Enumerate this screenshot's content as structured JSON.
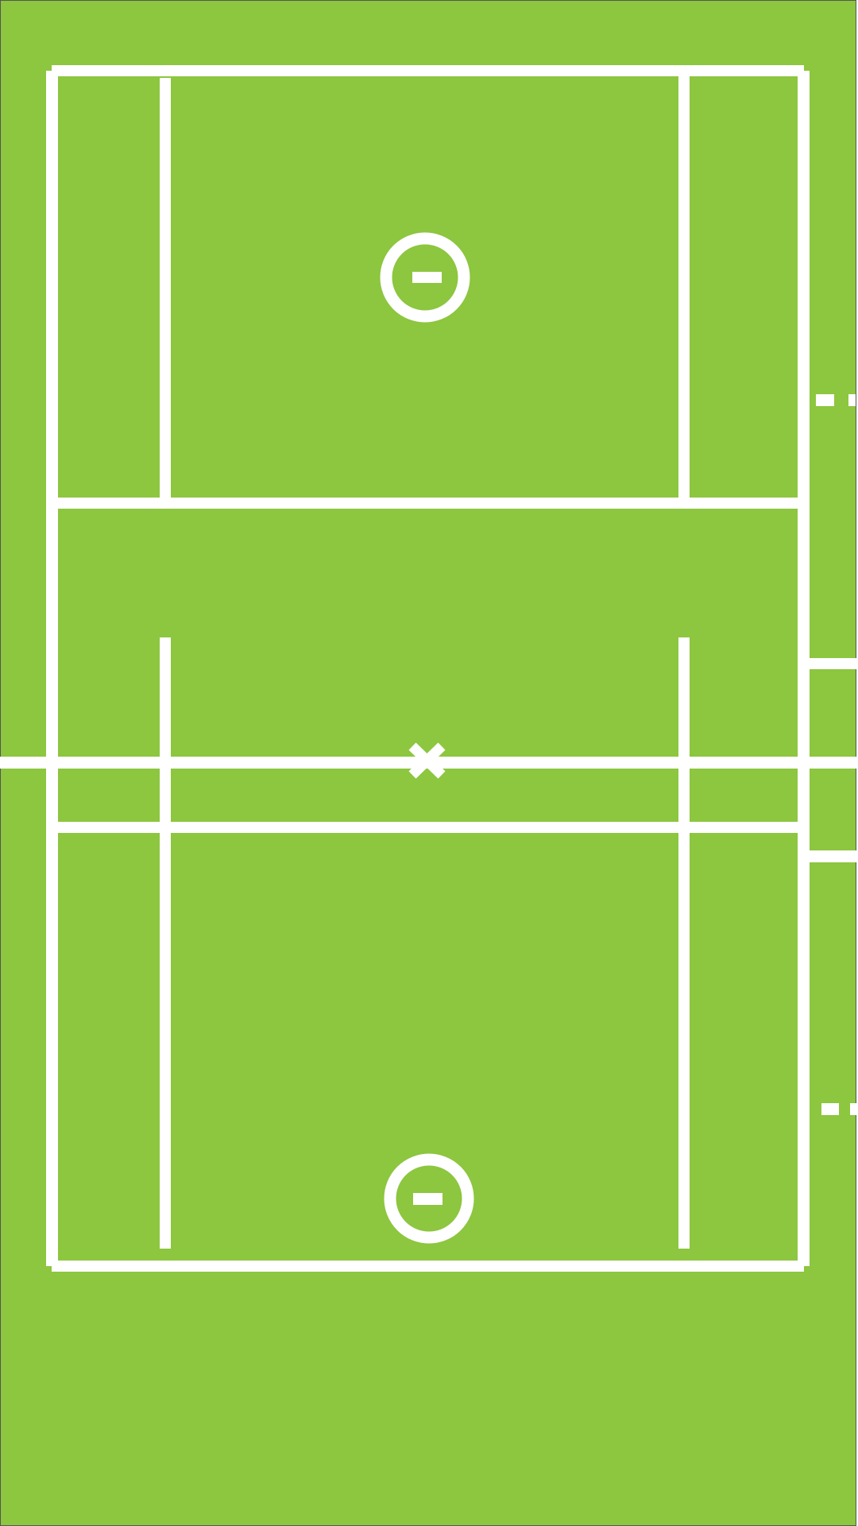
{
  "court": {
    "surface_color": "#8dc63f",
    "line_color": "#ffffff",
    "border_color": "#555555",
    "features": [
      {
        "name": "outer-boundary"
      },
      {
        "name": "left-sideline"
      },
      {
        "name": "right-sideline"
      },
      {
        "name": "top-baseline"
      },
      {
        "name": "bottom-baseline"
      },
      {
        "name": "top-service-line"
      },
      {
        "name": "bottom-service-line"
      },
      {
        "name": "center-line"
      },
      {
        "name": "center-cross-mark"
      },
      {
        "name": "top-circle-marker"
      },
      {
        "name": "bottom-circle-marker"
      },
      {
        "name": "side-notch-marks"
      }
    ]
  }
}
